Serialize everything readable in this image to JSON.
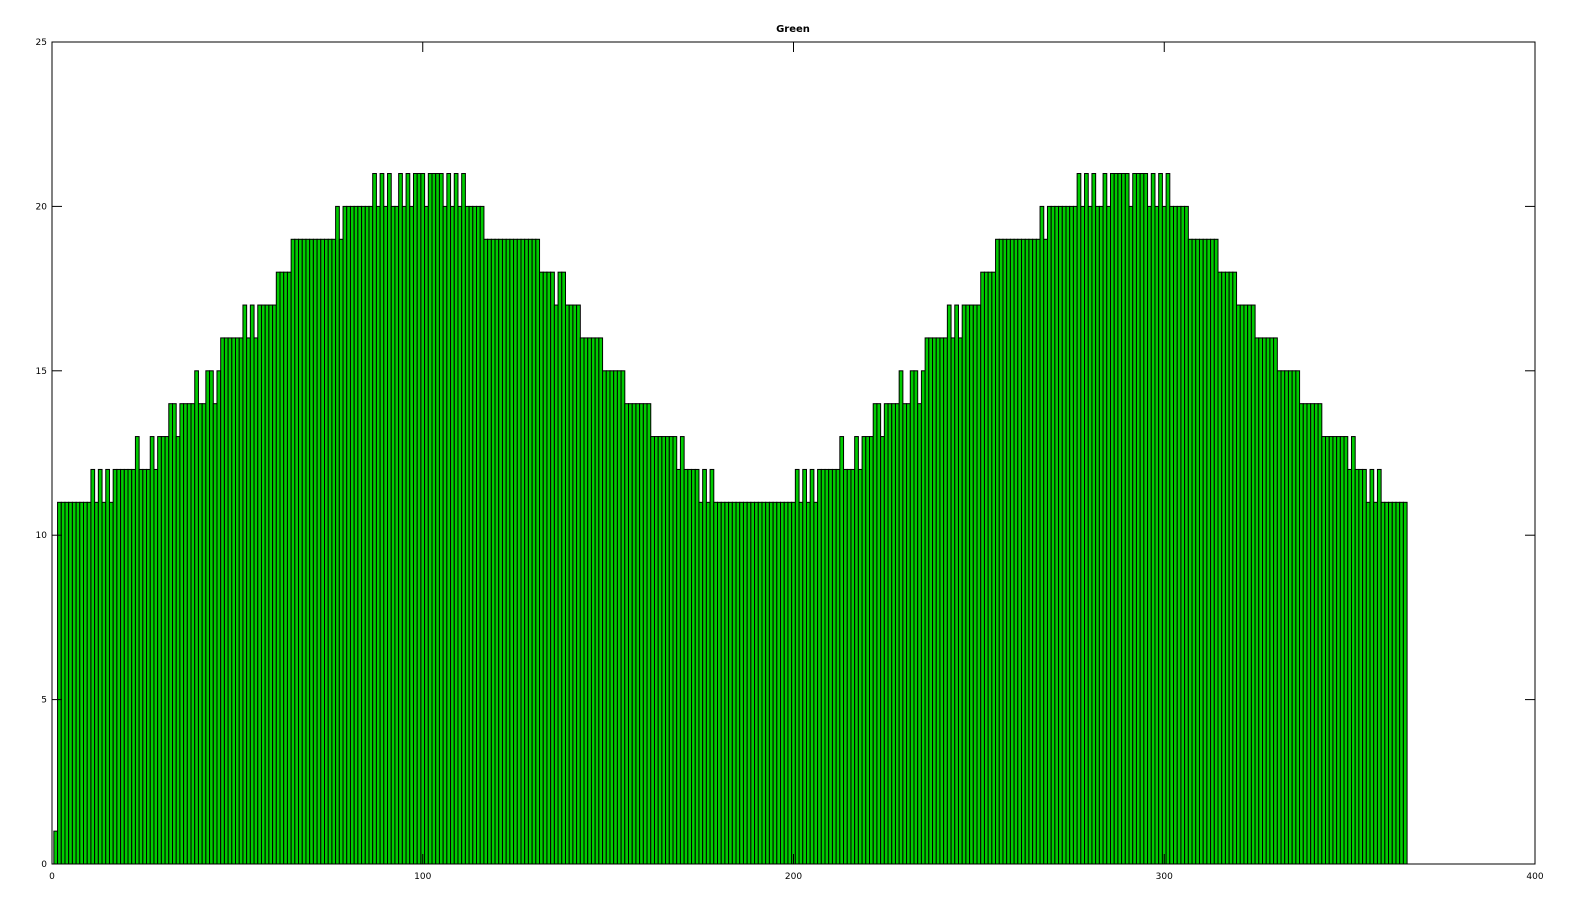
{
  "chart_data": {
    "type": "bar",
    "title": "Green",
    "xlabel": "",
    "ylabel": "",
    "xlim": [
      0,
      400
    ],
    "ylim": [
      0,
      25
    ],
    "xticks": [
      0,
      100,
      200,
      300,
      400
    ],
    "yticks": [
      0,
      5,
      10,
      15,
      20,
      25
    ],
    "grid": false,
    "colors": {
      "bar_fill": "#00cc00",
      "bar_edge": "#000000"
    },
    "x_start": 1,
    "bar_width": 1,
    "values": [
      1,
      11,
      11,
      11,
      11,
      11,
      11,
      11,
      11,
      11,
      12,
      11,
      12,
      11,
      12,
      11,
      12,
      12,
      12,
      12,
      12,
      12,
      13,
      12,
      12,
      12,
      13,
      12,
      13,
      13,
      13,
      14,
      14,
      13,
      14,
      14,
      14,
      14,
      15,
      14,
      14,
      15,
      15,
      14,
      15,
      16,
      16,
      16,
      16,
      16,
      16,
      17,
      16,
      17,
      16,
      17,
      17,
      17,
      17,
      17,
      18,
      18,
      18,
      18,
      19,
      19,
      19,
      19,
      19,
      19,
      19,
      19,
      19,
      19,
      19,
      19,
      20,
      19,
      20,
      20,
      20,
      20,
      20,
      20,
      20,
      20,
      21,
      20,
      21,
      20,
      21,
      20,
      20,
      21,
      20,
      21,
      20,
      21,
      21,
      21,
      20,
      21,
      21,
      21,
      21,
      20,
      21,
      20,
      21,
      20,
      21,
      20,
      20,
      20,
      20,
      20,
      19,
      19,
      19,
      19,
      19,
      19,
      19,
      19,
      19,
      19,
      19,
      19,
      19,
      19,
      19,
      18,
      18,
      18,
      18,
      17,
      18,
      18,
      17,
      17,
      17,
      17,
      16,
      16,
      16,
      16,
      16,
      16,
      15,
      15,
      15,
      15,
      15,
      15,
      14,
      14,
      14,
      14,
      14,
      14,
      14,
      13,
      13,
      13,
      13,
      13,
      13,
      13,
      12,
      13,
      12,
      12,
      12,
      12,
      11,
      12,
      11,
      12,
      11,
      11,
      11,
      11,
      11,
      11,
      11,
      11,
      11,
      11,
      11,
      11,
      11,
      11,
      11,
      11,
      11,
      11,
      11,
      11,
      11,
      11,
      12,
      11,
      12,
      11,
      12,
      11,
      12,
      12,
      12,
      12,
      12,
      12,
      13,
      12,
      12,
      12,
      13,
      12,
      13,
      13,
      13,
      14,
      14,
      13,
      14,
      14,
      14,
      14,
      15,
      14,
      14,
      15,
      15,
      14,
      15,
      16,
      16,
      16,
      16,
      16,
      16,
      17,
      16,
      17,
      16,
      17,
      17,
      17,
      17,
      17,
      18,
      18,
      18,
      18,
      19,
      19,
      19,
      19,
      19,
      19,
      19,
      19,
      19,
      19,
      19,
      19,
      20,
      19,
      20,
      20,
      20,
      20,
      20,
      20,
      20,
      20,
      21,
      20,
      21,
      20,
      21,
      20,
      20,
      21,
      20,
      21,
      21,
      21,
      21,
      21,
      20,
      21,
      21,
      21,
      21,
      20,
      21,
      20,
      21,
      20,
      21,
      20,
      20,
      20,
      20,
      20,
      19,
      19,
      19,
      19,
      19,
      19,
      19,
      19,
      18,
      18,
      18,
      18,
      18,
      17,
      17,
      17,
      17,
      17,
      16,
      16,
      16,
      16,
      16,
      16,
      15,
      15,
      15,
      15,
      15,
      15,
      14,
      14,
      14,
      14,
      14,
      14,
      13,
      13,
      13,
      13,
      13,
      13,
      13,
      12,
      13,
      12,
      12,
      12,
      11,
      12,
      11,
      12,
      11,
      11,
      11,
      11,
      11,
      11,
      11
    ]
  }
}
